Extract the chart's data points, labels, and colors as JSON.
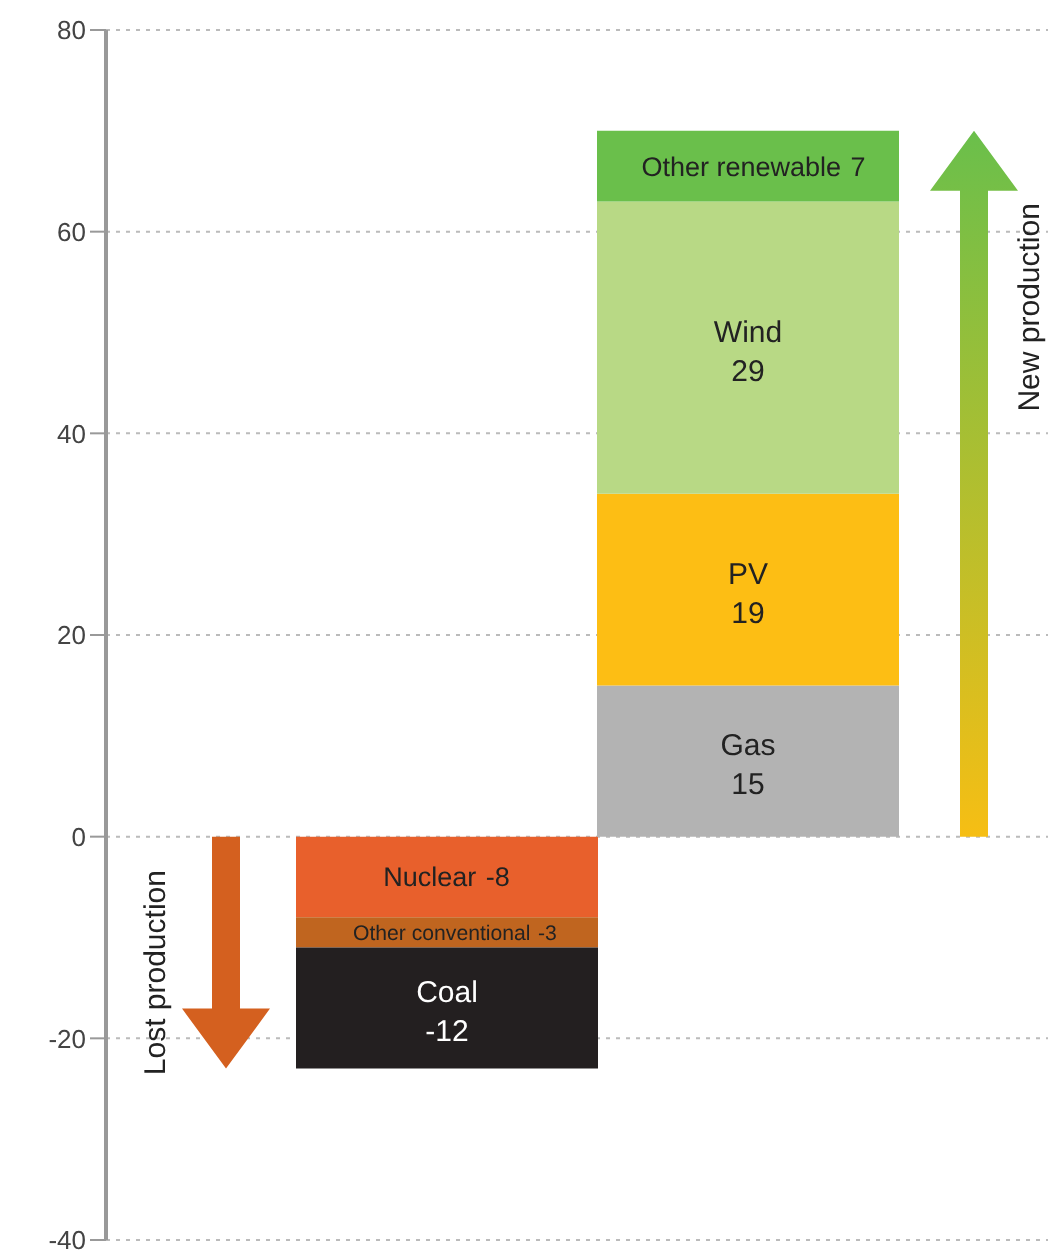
{
  "chart_data": {
    "type": "bar",
    "stacked": true,
    "categories": [
      null,
      null
    ],
    "series": [
      {
        "name": "Nuclear",
        "color": "#e8602c",
        "values": [
          -8,
          null
        ]
      },
      {
        "name": "Other conventional",
        "color": "#c0651f",
        "values": [
          -3,
          null
        ]
      },
      {
        "name": "Coal",
        "color": "#231f20",
        "values": [
          -12,
          null
        ]
      },
      {
        "name": "Gas",
        "color": "#b3b3b3",
        "values": [
          null,
          15
        ]
      },
      {
        "name": "PV",
        "color": "#fdbe14",
        "values": [
          null,
          19
        ]
      },
      {
        "name": "Wind",
        "color": "#b8d985",
        "values": [
          null,
          29
        ]
      },
      {
        "name": "Other renewable",
        "color": "#6abf4b",
        "values": [
          null,
          7
        ]
      }
    ],
    "ylim": [
      -40,
      80
    ],
    "yticks": [
      -40,
      -20,
      0,
      20,
      40,
      60,
      80
    ],
    "grid": "y",
    "tick_labels": "y",
    "data_labels": true,
    "annotations": [
      "Lost production",
      "New production"
    ]
  }
}
